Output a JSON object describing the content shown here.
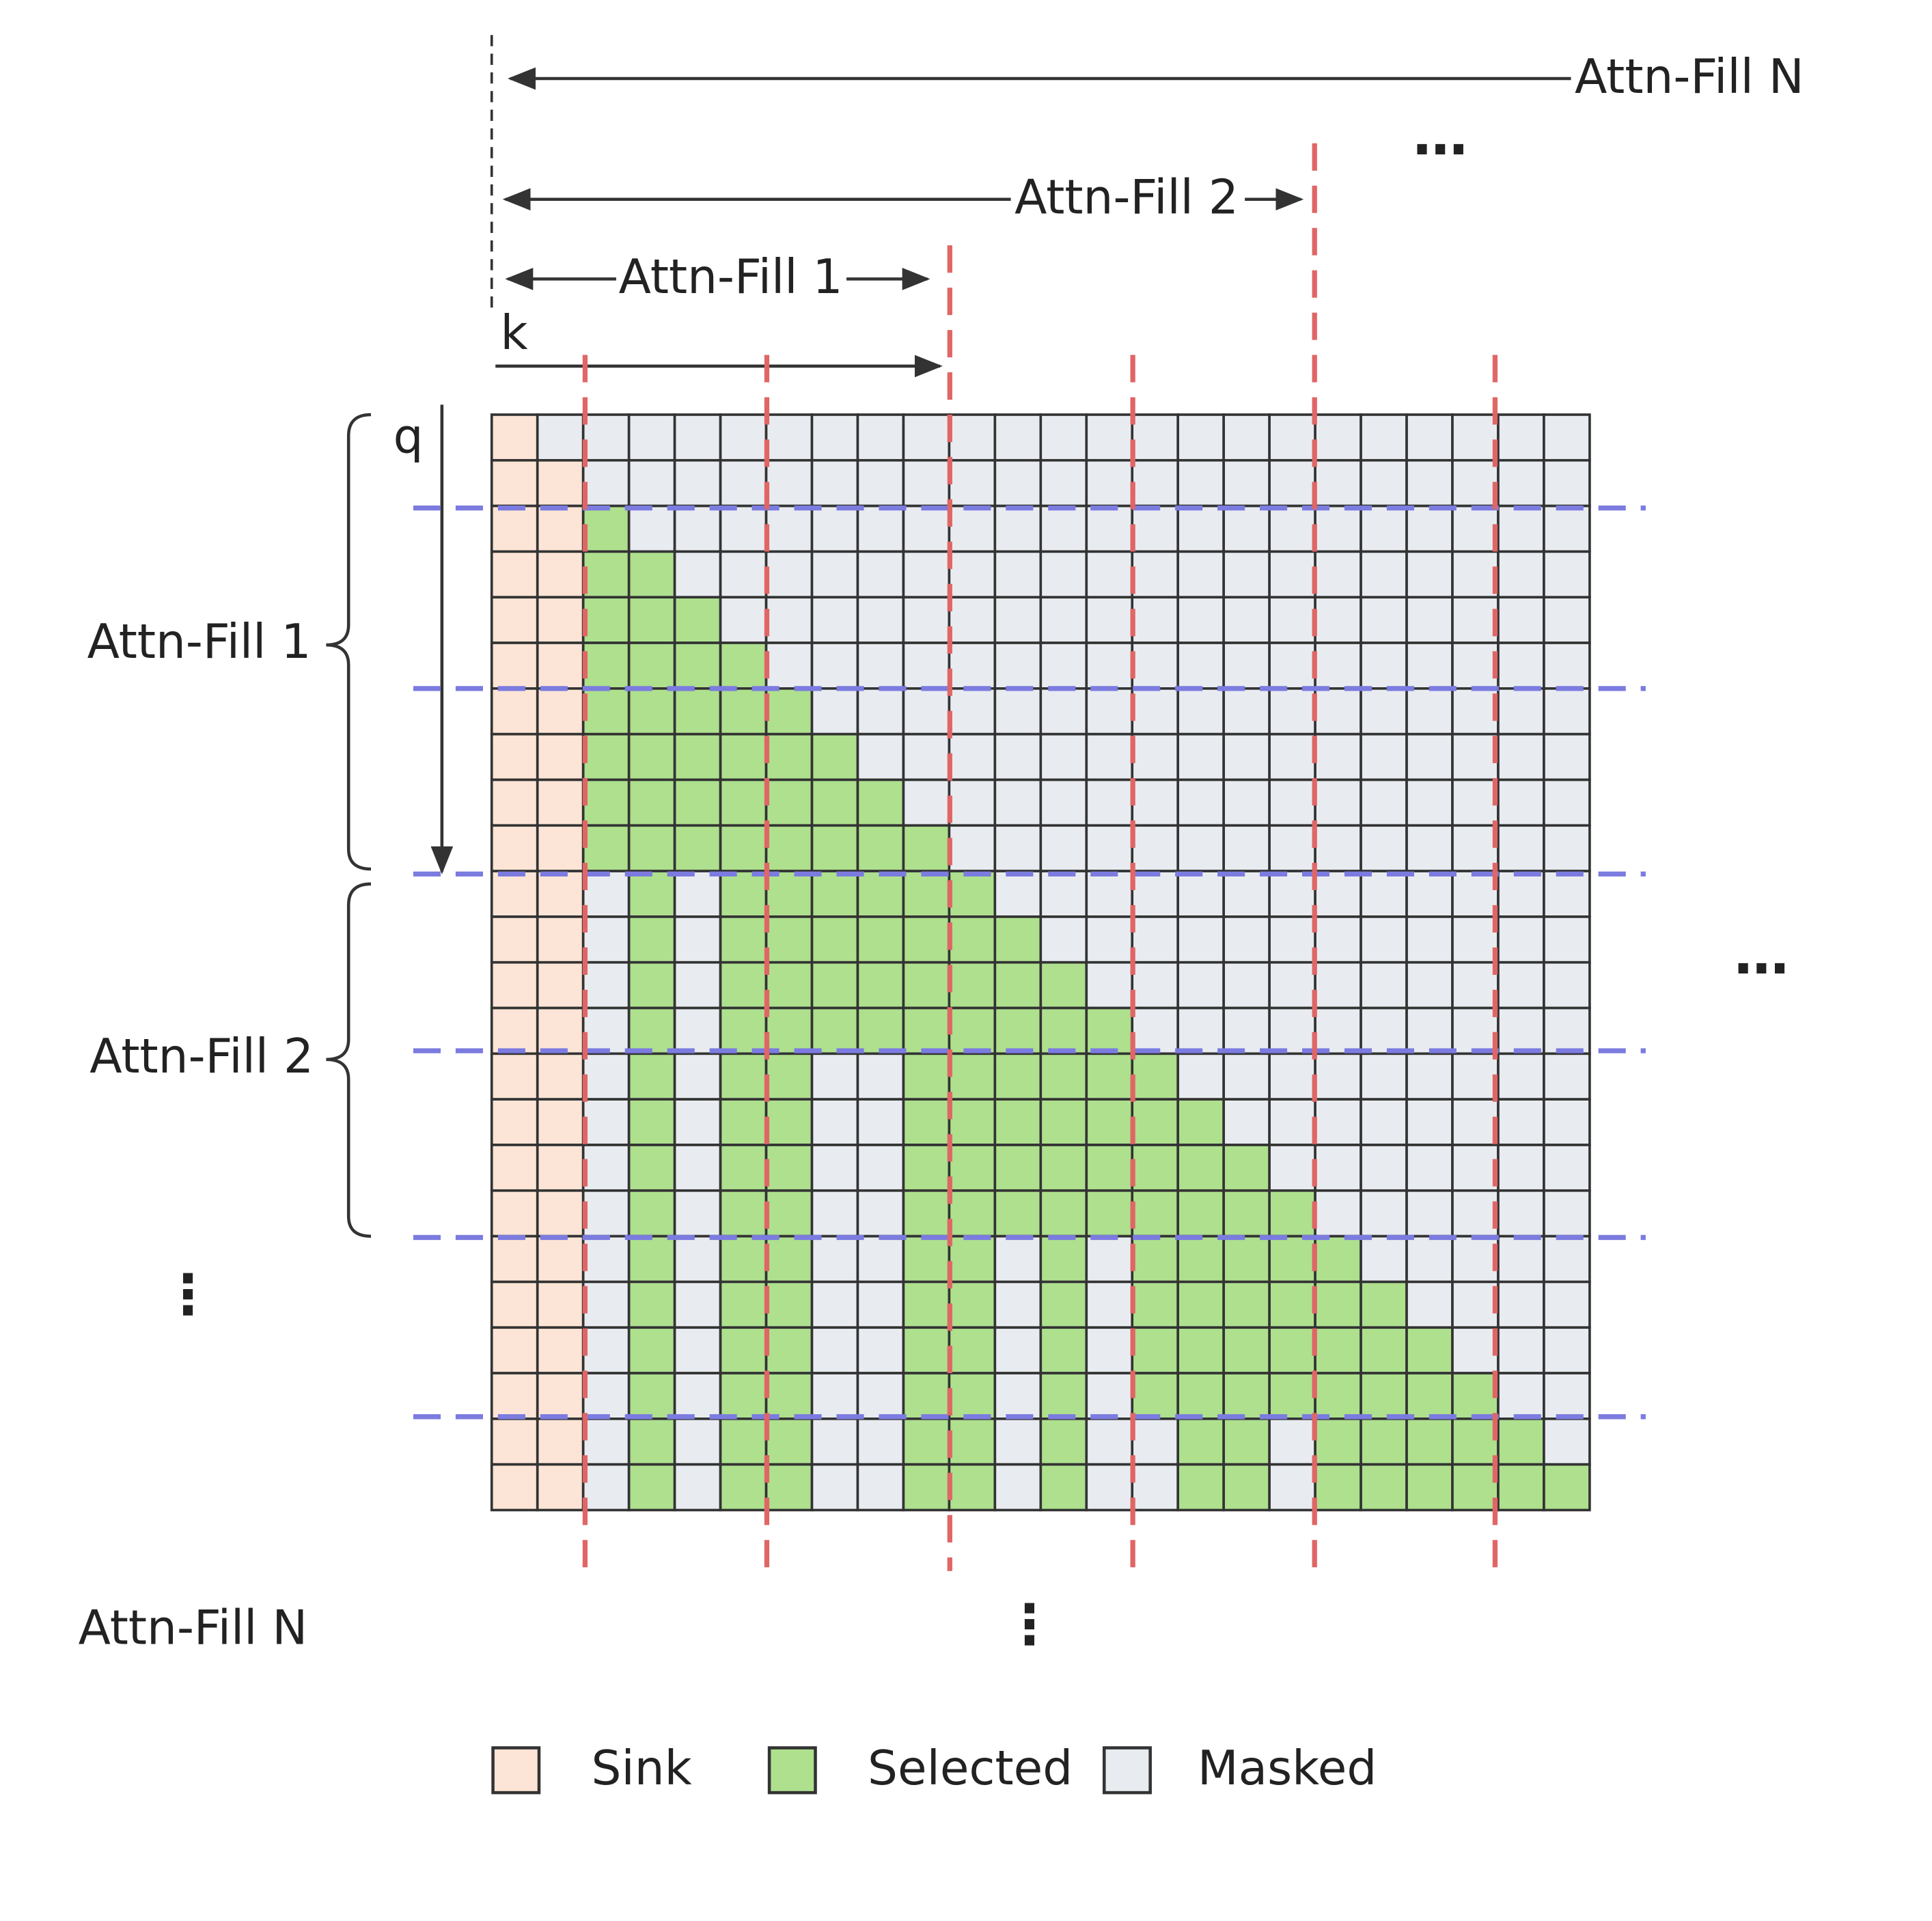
{
  "top_spans": [
    {
      "label": "Attn-Fill 1"
    },
    {
      "label": "Attn-Fill 2"
    },
    {
      "label": "Attn-Fill N"
    }
  ],
  "top_ellipsis": "…",
  "axes": {
    "k": "k",
    "q": "q"
  },
  "left_groups": [
    {
      "label": "Attn-Fill 1"
    },
    {
      "label": "Attn-Fill 2"
    }
  ],
  "left_ellipsis": "⋮",
  "bottom_label": "Attn-Fill N",
  "bottom_ellipsis": "⋮",
  "right_ellipsis": "…",
  "legend": [
    {
      "label": "Sink"
    },
    {
      "label": "Selected"
    },
    {
      "label": "Masked"
    }
  ]
}
